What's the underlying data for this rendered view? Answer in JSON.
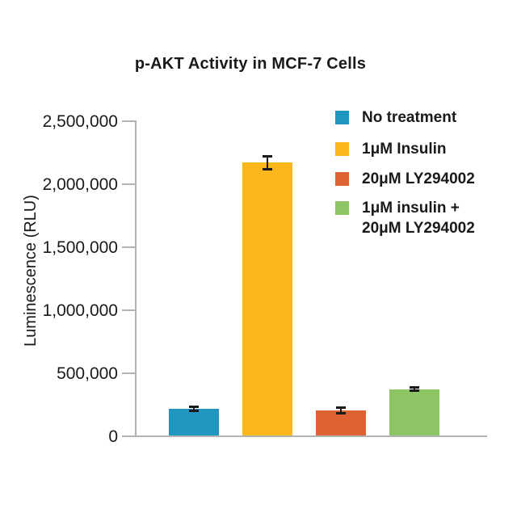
{
  "chart_data": {
    "type": "bar",
    "title": "p-AKT Activity in MCF-7 Cells",
    "xlabel": "",
    "ylabel": "Luminescence (RLU)",
    "ylim": [
      0,
      2500000
    ],
    "yticks": [
      0,
      500000,
      1000000,
      1500000,
      2000000,
      2500000
    ],
    "ytick_labels": [
      "0",
      "500,000",
      "1,000,000",
      "1,500,000",
      "2,000,000",
      "2,500,000"
    ],
    "grid": false,
    "legend_position": "top-right",
    "categories": [
      "No treatment",
      "1μM Insulin",
      "20μM LY294002",
      "1μM insulin + 20μM LY294002"
    ],
    "values": [
      220000,
      2170000,
      205000,
      375000
    ],
    "errors": [
      15000,
      50000,
      20000,
      15000
    ],
    "colors": [
      "#2196c1",
      "#fcb71a",
      "#dd6332",
      "#8ec564"
    ],
    "error_bar_color": "#1a1a1a",
    "axis_color": "#b3b3b3",
    "legend": [
      {
        "label": "No treatment",
        "color": "#2196c1"
      },
      {
        "label": "1μM Insulin",
        "color": "#fcb71a"
      },
      {
        "label": "20μM LY294002",
        "color": "#dd6332"
      },
      {
        "label": "1μM insulin +\n20μM LY294002",
        "color": "#8ec564"
      }
    ]
  }
}
